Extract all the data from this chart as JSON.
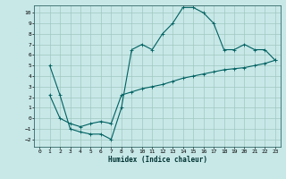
{
  "xlabel": "Humidex (Indice chaleur)",
  "ylabel": "",
  "bg_color": "#c8e8e8",
  "grid_color": "#a0c8c0",
  "line_color": "#006060",
  "xlim": [
    -0.5,
    23.5
  ],
  "ylim": [
    -2.7,
    10.7
  ],
  "xticks": [
    0,
    1,
    2,
    3,
    4,
    5,
    6,
    7,
    8,
    9,
    10,
    11,
    12,
    13,
    14,
    15,
    16,
    17,
    18,
    19,
    20,
    21,
    22,
    23
  ],
  "yticks": [
    -2,
    -1,
    0,
    1,
    2,
    3,
    4,
    5,
    6,
    7,
    8,
    9,
    10
  ],
  "curve1_x": [
    1,
    2,
    3,
    4,
    5,
    6,
    7,
    8,
    9,
    10,
    11,
    12,
    13,
    14,
    15,
    16,
    17,
    18,
    19,
    20,
    21,
    22,
    23
  ],
  "curve1_y": [
    5,
    2.2,
    -1.0,
    -1.3,
    -1.5,
    -1.5,
    -2.0,
    1.0,
    6.5,
    7.0,
    6.5,
    8.0,
    9.0,
    10.5,
    10.5,
    10.0,
    9.0,
    6.5,
    6.5,
    7.0,
    6.5,
    6.5,
    5.5
  ],
  "curve2_x": [
    1,
    2,
    3,
    4,
    5,
    6,
    7,
    8,
    9,
    10,
    11,
    12,
    13,
    14,
    15,
    16,
    17,
    18,
    19,
    20,
    21,
    22,
    23
  ],
  "curve2_y": [
    2.2,
    0.0,
    -0.5,
    -0.8,
    -0.5,
    -0.3,
    -0.5,
    2.2,
    2.5,
    2.8,
    3.0,
    3.2,
    3.5,
    3.8,
    4.0,
    4.2,
    4.4,
    4.6,
    4.7,
    4.8,
    5.0,
    5.2,
    5.5
  ],
  "marker": "+",
  "markersize": 2.5,
  "linewidth": 0.8,
  "tick_fontsize": 4.5,
  "xlabel_fontsize": 5.5
}
